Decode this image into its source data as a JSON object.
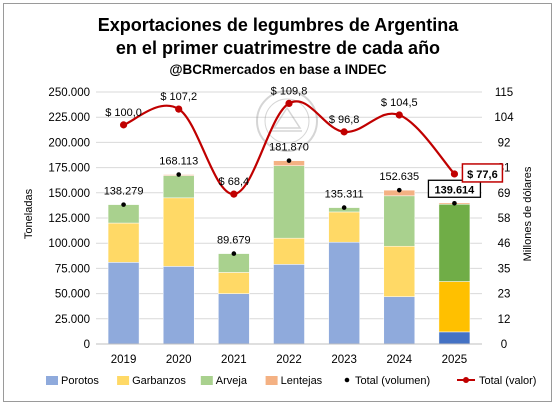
{
  "chart_data": {
    "type": "bar",
    "title": "Exportaciones de legumbres de Argentina",
    "title_line2": "en el primer cuatrimestre de cada año",
    "subtitle": "@BCRmercados en base a INDEC",
    "ylabel": "Toneladas",
    "y2label": "Millones de dólares",
    "ylim": [
      0,
      250000
    ],
    "y2lim": [
      0,
      115
    ],
    "yticks": [
      "0",
      "25.000",
      "50.000",
      "75.000",
      "100.000",
      "125.000",
      "150.000",
      "175.000",
      "200.000",
      "225.000",
      "250.000"
    ],
    "y2ticks": [
      "0",
      "12",
      "23",
      "35",
      "46",
      "58",
      "69",
      "81",
      "92",
      "104",
      "115"
    ],
    "categories": [
      "2019",
      "2020",
      "2021",
      "2022",
      "2023",
      "2024",
      "2025"
    ],
    "series": [
      {
        "name": "Porotos",
        "color": "#8faadc",
        "color_highlight": "#4472c4",
        "values": [
          81000,
          77000,
          50000,
          79000,
          101000,
          47000,
          12000
        ]
      },
      {
        "name": "Garbanzos",
        "color": "#ffd966",
        "color_highlight": "#ffc000",
        "values": [
          39000,
          68000,
          21000,
          26000,
          30000,
          50000,
          50000
        ]
      },
      {
        "name": "Arveja",
        "color": "#a9d18e",
        "color_highlight": "#70ad47",
        "values": [
          18279,
          22113,
          18679,
          71870,
          4311,
          50000,
          76614
        ]
      },
      {
        "name": "Lentejas",
        "color": "#f4b183",
        "color_highlight": "#ed7d31",
        "values": [
          0,
          1000,
          0,
          5000,
          0,
          5635,
          1000
        ]
      }
    ],
    "totals_volume": {
      "name": "Total (volumen)",
      "values": [
        138279,
        168113,
        89679,
        181870,
        135311,
        152635,
        139614
      ],
      "labels": [
        "138.279",
        "168.113",
        "89.679",
        "181.870",
        "135.311",
        "152.635",
        "139.614"
      ]
    },
    "totals_value": {
      "name": "Total (valor)",
      "color": "#c00000",
      "values": [
        100.0,
        107.2,
        68.4,
        109.8,
        96.8,
        104.5,
        77.6
      ],
      "labels": [
        "$ 100,0",
        "$ 107,2",
        "$ 68,4",
        "$ 109,8",
        "$ 96,8",
        "$ 104,5",
        "$ 77,6"
      ]
    },
    "highlight_last": true,
    "legend_position": "bottom",
    "grid": true
  },
  "colors": {
    "grid": "#d9d9d9",
    "dot": "#000000",
    "highlight_box": "#c00000"
  }
}
